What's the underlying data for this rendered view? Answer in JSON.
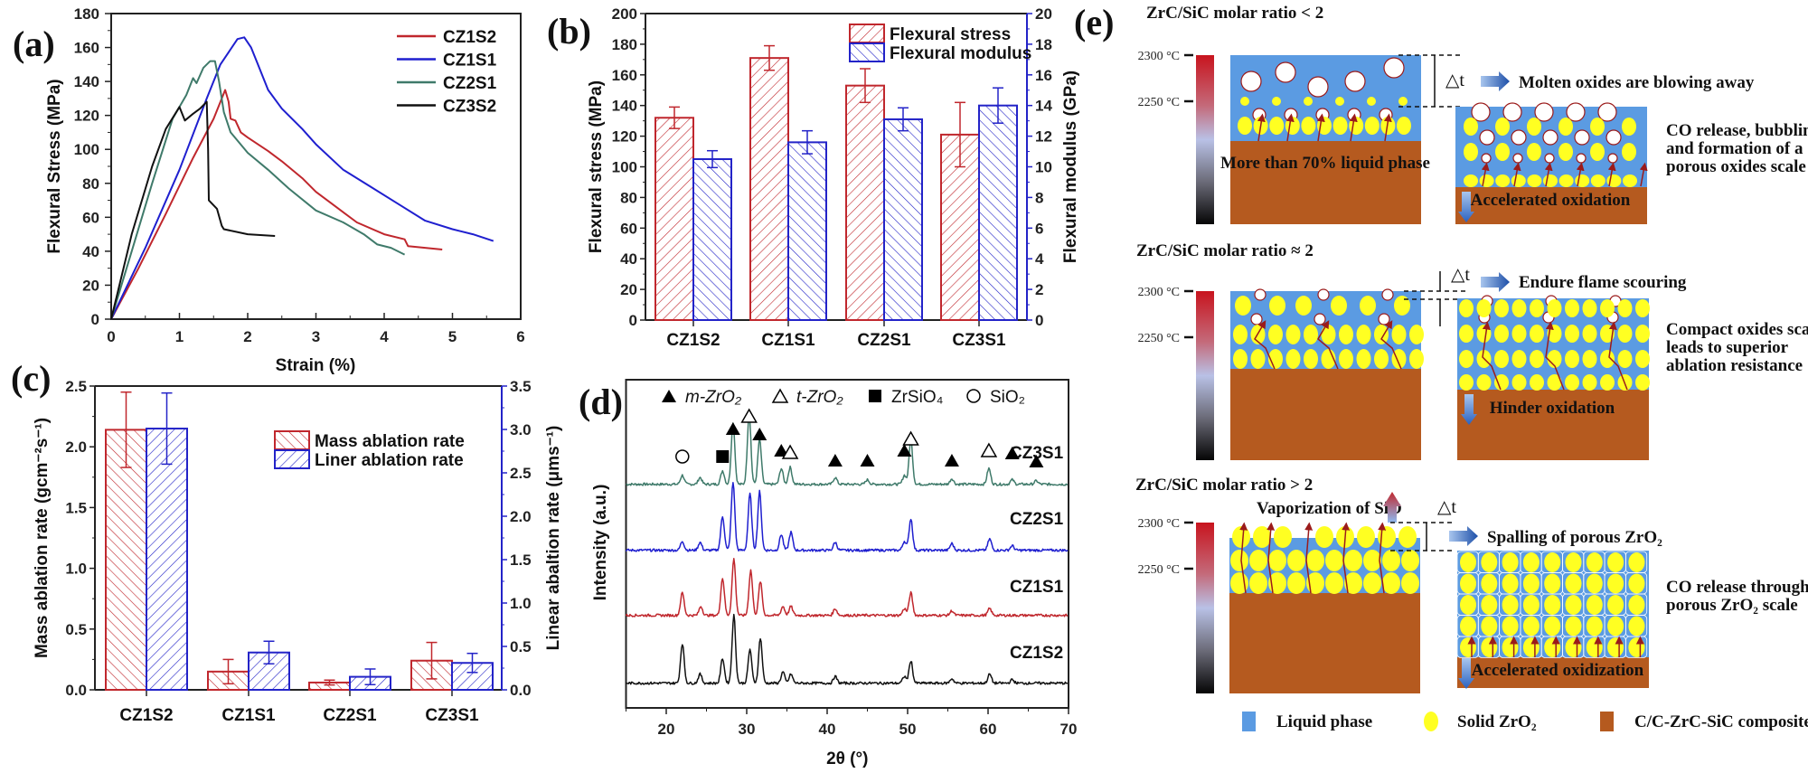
{
  "chart_data": [
    {
      "panel_label": "(a)",
      "type": "line",
      "xlabel": "Strain (%)",
      "ylabel": "Flexural Stress (MPa)",
      "xlim": [
        0,
        6
      ],
      "ylim": [
        0,
        180
      ],
      "xticks": [
        "0",
        "1",
        "2",
        "3",
        "4",
        "5",
        "6"
      ],
      "yticks": [
        "0",
        "20",
        "40",
        "60",
        "80",
        "100",
        "120",
        "140",
        "160",
        "180"
      ],
      "legend_position": "top-right",
      "series": [
        {
          "name": "CZ1S2",
          "color": "#c0272d",
          "points": [
            [
              0,
              0
            ],
            [
              0.4,
              30
            ],
            [
              0.8,
              62
            ],
            [
              1.2,
              95
            ],
            [
              1.5,
              118
            ],
            [
              1.67,
              135
            ],
            [
              1.72,
              128
            ],
            [
              1.75,
              118
            ],
            [
              1.82,
              117
            ],
            [
              1.9,
              110
            ],
            [
              2.0,
              107
            ],
            [
              2.3,
              99
            ],
            [
              2.5,
              93
            ],
            [
              2.8,
              83
            ],
            [
              3.0,
              75
            ],
            [
              3.3,
              66
            ],
            [
              3.6,
              57
            ],
            [
              4.0,
              50
            ],
            [
              4.3,
              47
            ],
            [
              4.35,
              43
            ],
            [
              4.6,
              42
            ],
            [
              4.85,
              41
            ]
          ]
        },
        {
          "name": "CZ1S1",
          "color": "#1f1fcf",
          "points": [
            [
              0,
              0
            ],
            [
              0.5,
              42
            ],
            [
              1.0,
              88
            ],
            [
              1.4,
              130
            ],
            [
              1.6,
              150
            ],
            [
              1.85,
              165
            ],
            [
              1.95,
              166
            ],
            [
              2.05,
              160
            ],
            [
              2.15,
              150
            ],
            [
              2.3,
              135
            ],
            [
              2.5,
              124
            ],
            [
              2.8,
              112
            ],
            [
              3.0,
              103
            ],
            [
              3.4,
              88
            ],
            [
              3.8,
              78
            ],
            [
              4.2,
              68
            ],
            [
              4.6,
              58
            ],
            [
              5.0,
              53
            ],
            [
              5.3,
              50
            ],
            [
              5.6,
              46
            ]
          ]
        },
        {
          "name": "CZ2S1",
          "color": "#3f7a6a",
          "points": [
            [
              0,
              0
            ],
            [
              0.3,
              40
            ],
            [
              0.6,
              80
            ],
            [
              0.9,
              118
            ],
            [
              1.1,
              132
            ],
            [
              1.2,
              142
            ],
            [
              1.25,
              139
            ],
            [
              1.35,
              148
            ],
            [
              1.45,
              152
            ],
            [
              1.52,
              152
            ],
            [
              1.58,
              140
            ],
            [
              1.65,
              122
            ],
            [
              1.75,
              110
            ],
            [
              2.0,
              98
            ],
            [
              2.3,
              88
            ],
            [
              2.6,
              77
            ],
            [
              3.0,
              64
            ],
            [
              3.4,
              57
            ],
            [
              3.7,
              50
            ],
            [
              3.9,
              44
            ],
            [
              4.1,
              42
            ],
            [
              4.3,
              38
            ]
          ]
        },
        {
          "name": "CZ3S2",
          "color": "#111111",
          "points": [
            [
              0,
              0
            ],
            [
              0.3,
              50
            ],
            [
              0.6,
              90
            ],
            [
              0.8,
              112
            ],
            [
              1.0,
              125
            ],
            [
              1.08,
              117
            ],
            [
              1.2,
              121
            ],
            [
              1.3,
              124
            ],
            [
              1.4,
              128
            ],
            [
              1.42,
              100
            ],
            [
              1.43,
              70
            ],
            [
              1.55,
              65
            ],
            [
              1.62,
              55
            ],
            [
              1.65,
              53
            ],
            [
              2.0,
              50
            ],
            [
              2.4,
              49
            ]
          ]
        }
      ]
    },
    {
      "panel_label": "(b)",
      "type": "bar",
      "categories": [
        "CZ1S2",
        "CZ1S1",
        "CZ2S1",
        "CZ3S1"
      ],
      "ylabel": "Flexural stress (MPa)",
      "y2label": "Flexural modulus (GPa)",
      "ylim": [
        0,
        200
      ],
      "y2lim": [
        0,
        20
      ],
      "yticks": [
        "0",
        "20",
        "40",
        "60",
        "80",
        "100",
        "120",
        "140",
        "160",
        "180",
        "200"
      ],
      "y2ticks": [
        "0",
        "2",
        "4",
        "6",
        "8",
        "10",
        "12",
        "14",
        "16",
        "18",
        "20"
      ],
      "legend_position": "top-right",
      "series": [
        {
          "name": "Flexural stress",
          "axis": "left",
          "color": "#c0272d",
          "values": [
            132,
            171,
            153,
            121
          ],
          "errors": [
            7,
            8,
            11,
            21
          ]
        },
        {
          "name": "Flexural modulus",
          "axis": "right",
          "color": "#2323c8",
          "values": [
            10.5,
            11.6,
            13.1,
            14.0
          ],
          "errors": [
            0.55,
            0.75,
            0.75,
            1.15
          ]
        }
      ]
    },
    {
      "panel_label": "(c)",
      "type": "bar",
      "categories": [
        "CZ1S2",
        "CZ1S1",
        "CZ2S1",
        "CZ3S1"
      ],
      "ylabel": "Mass ablation rate (gcm⁻²s⁻¹)",
      "y2label": "Linear abaltion rate (μms⁻¹)",
      "ylim": [
        0,
        2.5
      ],
      "y2lim": [
        0,
        3.5
      ],
      "yticks": [
        "0.0",
        "0.5",
        "1.0",
        "1.5",
        "2.0",
        "2.5"
      ],
      "y2ticks": [
        "0.0",
        "0.5",
        "1.0",
        "1.5",
        "2.0",
        "2.5",
        "3.0",
        "3.5"
      ],
      "legend_position": "top-right",
      "series": [
        {
          "name": "Mass ablation rate",
          "axis": "left",
          "color": "#c0272d",
          "values": [
            2.14,
            0.15,
            0.06,
            0.24
          ],
          "errors": [
            0.31,
            0.1,
            0.02,
            0.15
          ]
        },
        {
          "name": "Liner ablation rate",
          "axis": "right",
          "color": "#2323c8",
          "values": [
            3.01,
            0.43,
            0.15,
            0.31
          ],
          "errors": [
            0.41,
            0.13,
            0.09,
            0.11
          ]
        }
      ]
    },
    {
      "panel_label": "(d)",
      "type": "line",
      "xlabel": "2θ (°)",
      "ylabel": "Intensity (a.u.)",
      "xlim": [
        15,
        70
      ],
      "xticks": [
        "20",
        "30",
        "40",
        "50",
        "60",
        "70"
      ],
      "legend": [
        {
          "symbol": "filled-triangle",
          "label": "m-ZrO₂"
        },
        {
          "symbol": "open-triangle",
          "label": "t-ZrO₂"
        },
        {
          "symbol": "filled-square",
          "label": "ZrSiO₄"
        },
        {
          "symbol": "open-circle",
          "label": "SiO₂"
        }
      ],
      "annotations": [
        {
          "symbol": "open-circle",
          "x": 22
        },
        {
          "symbol": "filled-square",
          "x": 27
        },
        {
          "symbol": "filled-triangle",
          "x": 28.3
        },
        {
          "symbol": "open-triangle",
          "x": 30.3
        },
        {
          "symbol": "filled-triangle",
          "x": 31.6
        },
        {
          "symbol": "filled-triangle",
          "x": 34.3
        },
        {
          "symbol": "open-triangle",
          "x": 35.4
        },
        {
          "symbol": "filled-triangle",
          "x": 41
        },
        {
          "symbol": "filled-triangle",
          "x": 45
        },
        {
          "symbol": "filled-triangle",
          "x": 49.6
        },
        {
          "symbol": "open-triangle",
          "x": 50.4
        },
        {
          "symbol": "filled-triangle",
          "x": 55.5
        },
        {
          "symbol": "open-triangle",
          "x": 60.1
        },
        {
          "symbol": "filled-triangle",
          "x": 63
        },
        {
          "symbol": "filled-triangle",
          "x": 66
        }
      ],
      "series": [
        {
          "name": "CZ3S1",
          "color": "#3f7a6a",
          "peaks": [
            [
              22,
              8
            ],
            [
              24.2,
              6
            ],
            [
              27,
              12
            ],
            [
              28.3,
              55
            ],
            [
              30.3,
              62
            ],
            [
              31.6,
              40
            ],
            [
              34.3,
              14
            ],
            [
              35.4,
              15
            ],
            [
              41,
              6
            ],
            [
              45,
              4
            ],
            [
              49.6,
              8
            ],
            [
              50.4,
              40
            ],
            [
              55.5,
              5
            ],
            [
              60.1,
              14
            ],
            [
              63,
              4
            ],
            [
              66,
              3
            ]
          ]
        },
        {
          "name": "CZ2S1",
          "color": "#1f1fcf",
          "peaks": [
            [
              22,
              8
            ],
            [
              24.2,
              7
            ],
            [
              27,
              30
            ],
            [
              28.3,
              60
            ],
            [
              30.4,
              50
            ],
            [
              31.6,
              52
            ],
            [
              34.3,
              14
            ],
            [
              35.5,
              16
            ],
            [
              41,
              7
            ],
            [
              49.6,
              8
            ],
            [
              50.4,
              28
            ],
            [
              55.5,
              6
            ],
            [
              60.2,
              10
            ],
            [
              63,
              4
            ]
          ]
        },
        {
          "name": "CZ1S1",
          "color": "#c0272d",
          "peaks": [
            [
              22,
              20
            ],
            [
              24.3,
              8
            ],
            [
              27,
              33
            ],
            [
              28.4,
              50
            ],
            [
              30.5,
              40
            ],
            [
              31.7,
              30
            ],
            [
              34.5,
              8
            ],
            [
              35.5,
              8
            ],
            [
              41,
              6
            ],
            [
              49.6,
              6
            ],
            [
              50.4,
              20
            ],
            [
              55.5,
              4
            ],
            [
              60.2,
              6
            ]
          ]
        },
        {
          "name": "CZ1S2",
          "color": "#111111",
          "peaks": [
            [
              22,
              35
            ],
            [
              24.2,
              8
            ],
            [
              27,
              22
            ],
            [
              28.4,
              60
            ],
            [
              30.4,
              30
            ],
            [
              31.7,
              40
            ],
            [
              34.5,
              10
            ],
            [
              35.5,
              8
            ],
            [
              41,
              6
            ],
            [
              49.6,
              6
            ],
            [
              50.4,
              20
            ],
            [
              55.5,
              4
            ],
            [
              60.2,
              8
            ],
            [
              63,
              3
            ]
          ]
        }
      ]
    }
  ],
  "diagram": {
    "panel_label": "(e)",
    "delta_t": "△t",
    "temp_high": "2300 °C",
    "temp_low": "2250 °C",
    "scenarios": [
      {
        "title": "ZrC/SiC molar ratio < 2",
        "left_text": "More than 70% liquid phase",
        "arrow_text": "Molten oxides are blowing away",
        "bottom_text": "Accelerated oxidation",
        "side_text": [
          "CO  release, bubbling",
          "and formation of a",
          "porous oxides scale"
        ]
      },
      {
        "title": "ZrC/SiC molar ratio ≈ 2",
        "arrow_text": "Endure flame scouring",
        "bottom_text": "Hinder oxidation",
        "side_text": [
          "Compact oxides scale",
          "leads to superior",
          "ablation resistance"
        ]
      },
      {
        "title": "ZrC/SiC molar ratio > 2",
        "top_text": "Vaporization of SiO",
        "arrow_text": "Spalling of porous ZrO₂",
        "bottom_text": "Accelerated oxidization",
        "side_text": [
          "CO  release through",
          "porous ZrO₂ scale"
        ]
      }
    ],
    "legend": [
      {
        "label": "Liquid phase",
        "color": "#5b9be2"
      },
      {
        "label": "Solid ZrO₂",
        "color": "#ffff22"
      },
      {
        "label": "C/C-ZrC-SiC composites",
        "color": "#b55a1f"
      }
    ]
  }
}
